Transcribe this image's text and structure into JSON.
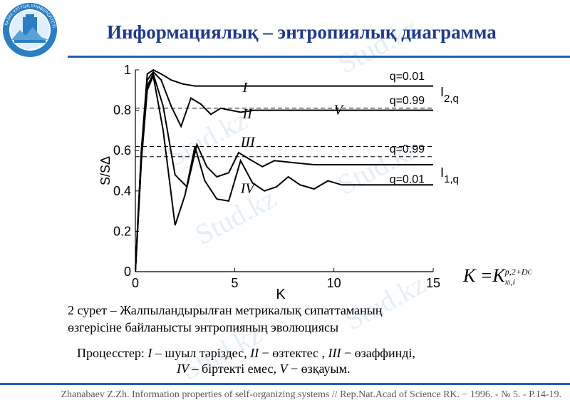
{
  "slide": {
    "title": "Информациялық – энтропиялық диаграмма",
    "logo_text": "ҚАЗАҚ ҰЛТТЫҚ УНИВЕРСИТЕТІ",
    "watermark": "Stud.kz"
  },
  "chart_data": {
    "type": "line",
    "xlabel": "K",
    "ylabel": "S/SΔ",
    "xlim": [
      0,
      15
    ],
    "ylim": [
      0,
      1
    ],
    "xticks": [
      "0",
      "5",
      "10",
      "15"
    ],
    "yticks": [
      "0",
      "0.2",
      "0.4",
      "0.6",
      "0.8",
      "1"
    ],
    "series": [
      {
        "x": [
          0,
          0.3,
          0.6,
          0.9,
          1.3,
          1.8,
          2.4,
          3.0,
          4.0,
          5.0,
          6.0,
          7.0,
          8.0,
          10.0,
          12.0,
          15.0
        ],
        "y": [
          0,
          0.6,
          0.98,
          1.0,
          0.98,
          0.95,
          0.93,
          0.92,
          0.92,
          0.92,
          0.92,
          0.92,
          0.92,
          0.92,
          0.92,
          0.92
        ]
      },
      {
        "x": [
          0,
          0.3,
          0.6,
          0.9,
          1.3,
          1.8,
          2.3,
          2.8,
          3.3,
          3.8,
          4.3,
          4.8,
          5.3,
          6.0,
          7.0,
          8.0,
          10.0,
          15.0
        ],
        "y": [
          0,
          0.6,
          0.95,
          0.99,
          0.95,
          0.82,
          0.72,
          0.86,
          0.83,
          0.78,
          0.81,
          0.8,
          0.79,
          0.8,
          0.8,
          0.8,
          0.8,
          0.8
        ]
      },
      {
        "x": [
          0,
          0.3,
          0.6,
          0.9,
          1.4,
          2.0,
          2.6,
          3.1,
          3.6,
          4.1,
          4.7,
          5.2,
          5.7,
          6.4,
          7.0,
          8.0,
          9.0,
          10.0,
          12.0,
          15.0
        ],
        "y": [
          0,
          0.55,
          0.92,
          0.98,
          0.82,
          0.48,
          0.42,
          0.63,
          0.52,
          0.47,
          0.49,
          0.59,
          0.56,
          0.52,
          0.55,
          0.54,
          0.53,
          0.53,
          0.53,
          0.53
        ]
      },
      {
        "x": [
          0,
          0.3,
          0.6,
          0.9,
          1.4,
          2.0,
          2.5,
          3.0,
          3.5,
          4.1,
          4.7,
          5.3,
          5.9,
          6.5,
          7.1,
          7.7,
          8.3,
          9.0,
          9.7,
          10.4,
          11.0,
          12.0,
          13.0,
          15.0
        ],
        "y": [
          0,
          0.55,
          0.9,
          0.97,
          0.7,
          0.23,
          0.38,
          0.62,
          0.45,
          0.36,
          0.35,
          0.55,
          0.44,
          0.4,
          0.42,
          0.47,
          0.43,
          0.41,
          0.45,
          0.43,
          0.43,
          0.43,
          0.43,
          0.43
        ]
      }
    ],
    "dashed_levels": [
      0.81,
      0.62,
      0.57
    ],
    "annotations": [
      {
        "text": "q=0.01",
        "x": 12.8,
        "y": 0.95
      },
      {
        "text": "q=0.99",
        "x": 12.8,
        "y": 0.83
      },
      {
        "text": "q=0.99",
        "x": 12.8,
        "y": 0.59
      },
      {
        "text": "q=0.01",
        "x": 12.8,
        "y": 0.44
      },
      {
        "text": "I",
        "x": 5.4,
        "y": 0.89
      },
      {
        "text": "II",
        "x": 5.4,
        "y": 0.76
      },
      {
        "text": "III",
        "x": 5.3,
        "y": 0.62
      },
      {
        "text": "IV",
        "x": 5.3,
        "y": 0.39
      },
      {
        "text": "V",
        "x": 10.0,
        "y": 0.78
      }
    ],
    "side_labels": [
      {
        "main": "I",
        "sub": "2,q",
        "y": 0.87
      },
      {
        "main": "I",
        "sub": "1,q",
        "y": 0.47
      }
    ]
  },
  "formula": {
    "lhs": "K",
    "eq": "=",
    "base": "K",
    "sup": "p,2+D",
    "sup_sub": "C",
    "sub": "x",
    "sub_sub": "i",
    "sub_tail": ",i"
  },
  "caption": {
    "line1": "2 сурет – Жалпыландырылған метрикалық сипаттаманың",
    "line2": "өзгерісіне байланысты энтропияның эволюциясы"
  },
  "processes": {
    "lead": "Процесстер: ",
    "I": "I",
    "I_text": " – шуыл тәріздес, ",
    "II": "II",
    "II_text": " − өзтектес , ",
    "III": "III",
    "III_text": " − өзаффинді,",
    "IV": "IV",
    "IV_text": " – біртекті емес, ",
    "V": "V",
    "V_text": " − өзқауым."
  },
  "reference": "Zhanabaev Z.Zh. Information properties of self-organizing systems // Rep.Nat.Acad of Science RK. − 1996. - № 5. - P.14-19."
}
